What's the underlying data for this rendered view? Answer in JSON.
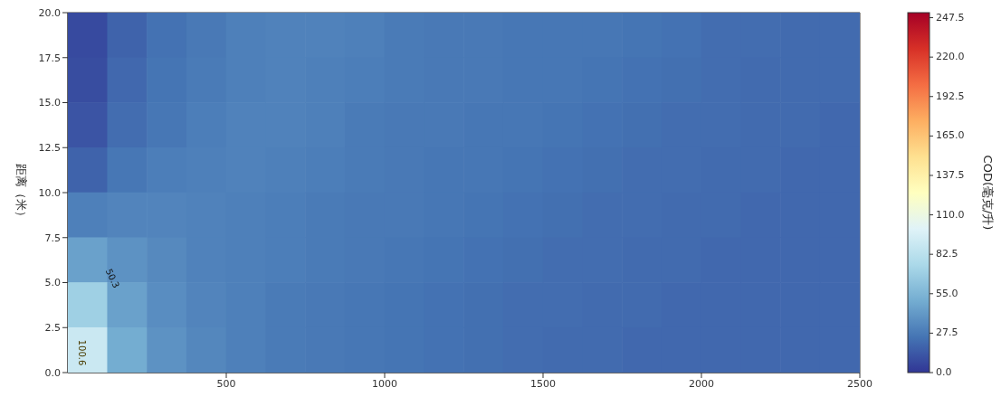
{
  "chart_data": {
    "type": "heatmap",
    "ylabel": "距离（米）",
    "clabel": "COD(毫克/升)",
    "x": [
      62.5,
      187.5,
      312.5,
      437.5,
      562.5,
      687.5,
      812.5,
      937.5,
      1062.5,
      1187.5,
      1312.5,
      1437.5,
      1562.5,
      1687.5,
      1812.5,
      1937.5,
      2062.5,
      2187.5,
      2312.5,
      2437.5
    ],
    "xlim": [
      0,
      2500
    ],
    "xticks": [
      500,
      1000,
      1500,
      2000,
      2500
    ],
    "ylim": [
      0,
      20
    ],
    "yticks": [
      {
        "value": 0,
        "label": "0.0"
      },
      2.5,
      {
        "value": 5,
        "label": "5.0"
      },
      7.5,
      {
        "value": 10,
        "label": "10.0"
      },
      12.5,
      {
        "value": 15,
        "label": "15.0"
      },
      17.5,
      {
        "value": 20,
        "label": "20.0"
      }
    ],
    "cells": [
      [
        8,
        18,
        24,
        27,
        30,
        31,
        31,
        30,
        28,
        27,
        27,
        26,
        26,
        26,
        25,
        24,
        22,
        22,
        21,
        21
      ],
      [
        9,
        20,
        25,
        28,
        30,
        31,
        30,
        29,
        28,
        27,
        27,
        26,
        26,
        25,
        24,
        23,
        22,
        21,
        21,
        21
      ],
      [
        12,
        22,
        26,
        29,
        31,
        31,
        30,
        28,
        27,
        27,
        26,
        26,
        25,
        24,
        23,
        22,
        22,
        21,
        21,
        20
      ],
      [
        18,
        26,
        29,
        30,
        31,
        30,
        29,
        28,
        27,
        26,
        26,
        25,
        24,
        23,
        22,
        22,
        21,
        21,
        20,
        20
      ],
      [
        30,
        32,
        32,
        31,
        30,
        29,
        28,
        27,
        27,
        26,
        25,
        24,
        23,
        22,
        22,
        21,
        21,
        20,
        20,
        20
      ],
      [
        45,
        38,
        34,
        31,
        30,
        29,
        28,
        27,
        26,
        25,
        24,
        23,
        22,
        22,
        21,
        21,
        20,
        20,
        20,
        20
      ],
      [
        70,
        45,
        36,
        32,
        30,
        28,
        27,
        26,
        25,
        24,
        23,
        22,
        22,
        21,
        21,
        20,
        20,
        20,
        20,
        20
      ],
      [
        90,
        50,
        38,
        33,
        30,
        28,
        27,
        26,
        25,
        24,
        23,
        22,
        21,
        21,
        20,
        20,
        20,
        20,
        20,
        20
      ]
    ],
    "clim": [
      0,
      251
    ],
    "cticks": [
      {
        "value": 0,
        "label": "0.0"
      },
      27.5,
      {
        "value": 55,
        "label": "55.0"
      },
      82.5,
      {
        "value": 110,
        "label": "110.0"
      },
      137.5,
      {
        "value": 165,
        "label": "165.0"
      },
      192.5,
      {
        "value": 220,
        "label": "220.0"
      },
      247.5
    ],
    "annotations": [
      "50.3",
      "100.6"
    ]
  }
}
